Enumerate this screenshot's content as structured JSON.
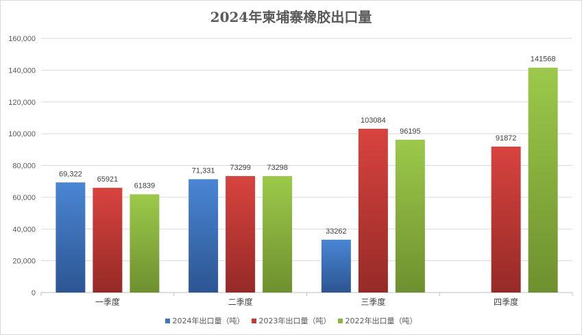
{
  "chart_data": {
    "type": "bar",
    "title": "2024年柬埔寨橡胶出口量",
    "categories": [
      "一季度",
      "二季度",
      "三季度",
      "四季度"
    ],
    "ylim": [
      0,
      160000
    ],
    "yticks": [
      "0",
      "20,000",
      "40,000",
      "60,000",
      "80,000",
      "100,000",
      "120,000",
      "140,000",
      "160,000"
    ],
    "grid": true,
    "legend_position": "bottom",
    "series": [
      {
        "name": "2024年出口量（吨）",
        "color": "#3f77c6",
        "values": [
          69322,
          71331,
          33262,
          null
        ],
        "labels": [
          "69,322",
          "71,331",
          "33262",
          ""
        ]
      },
      {
        "name": "2023年出口量（吨）",
        "color": "#c93a36",
        "values": [
          65921,
          73299,
          103084,
          91872
        ],
        "labels": [
          "65921",
          "73299",
          "103084",
          "91872"
        ]
      },
      {
        "name": "2022年出口量（吨）",
        "color": "#8db640",
        "values": [
          61839,
          73298,
          96195,
          141568
        ],
        "labels": [
          "61839",
          "73298",
          "96195",
          "141568"
        ]
      }
    ]
  }
}
